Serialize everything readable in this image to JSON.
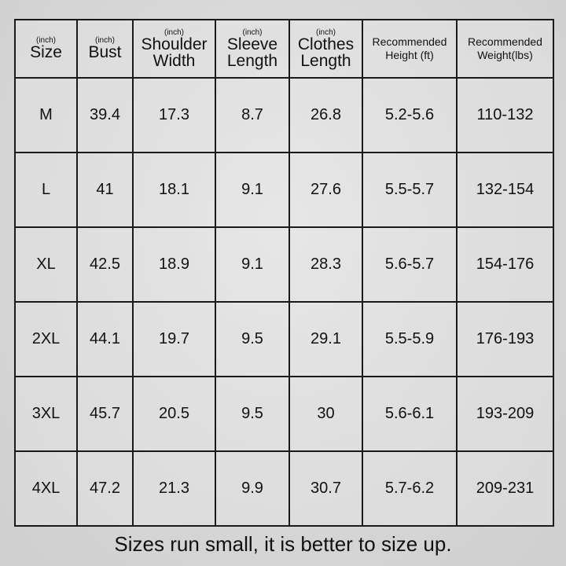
{
  "headers": [
    {
      "unit": "(inch)",
      "label": "Size",
      "label2": ""
    },
    {
      "unit": "(inch)",
      "label": "Bust",
      "label2": ""
    },
    {
      "unit": "(inch)",
      "label": "Shoulder",
      "label2": "Width"
    },
    {
      "unit": "(inch)",
      "label": "Sleeve",
      "label2": "Length"
    },
    {
      "unit": "(inch)",
      "label": "Clothes",
      "label2": "Length"
    },
    {
      "unit": "",
      "label": "Recommended",
      "label2": "Height (ft)"
    },
    {
      "unit": "",
      "label": "Recommended",
      "label2": "Weight(lbs)"
    }
  ],
  "rows": [
    [
      "M",
      "39.4",
      "17.3",
      "8.7",
      "26.8",
      "5.2-5.6",
      "110-132"
    ],
    [
      "L",
      "41",
      "18.1",
      "9.1",
      "27.6",
      "5.5-5.7",
      "132-154"
    ],
    [
      "XL",
      "42.5",
      "18.9",
      "9.1",
      "28.3",
      "5.6-5.7",
      "154-176"
    ],
    [
      "2XL",
      "44.1",
      "19.7",
      "9.5",
      "29.1",
      "5.5-5.9",
      "176-193"
    ],
    [
      "3XL",
      "45.7",
      "20.5",
      "9.5",
      "30",
      "5.6-6.1",
      "193-209"
    ],
    [
      "4XL",
      "47.2",
      "21.3",
      "9.9",
      "30.7",
      "5.7-6.2",
      "209-231"
    ]
  ],
  "note": "Sizes run small, it is better to size up."
}
